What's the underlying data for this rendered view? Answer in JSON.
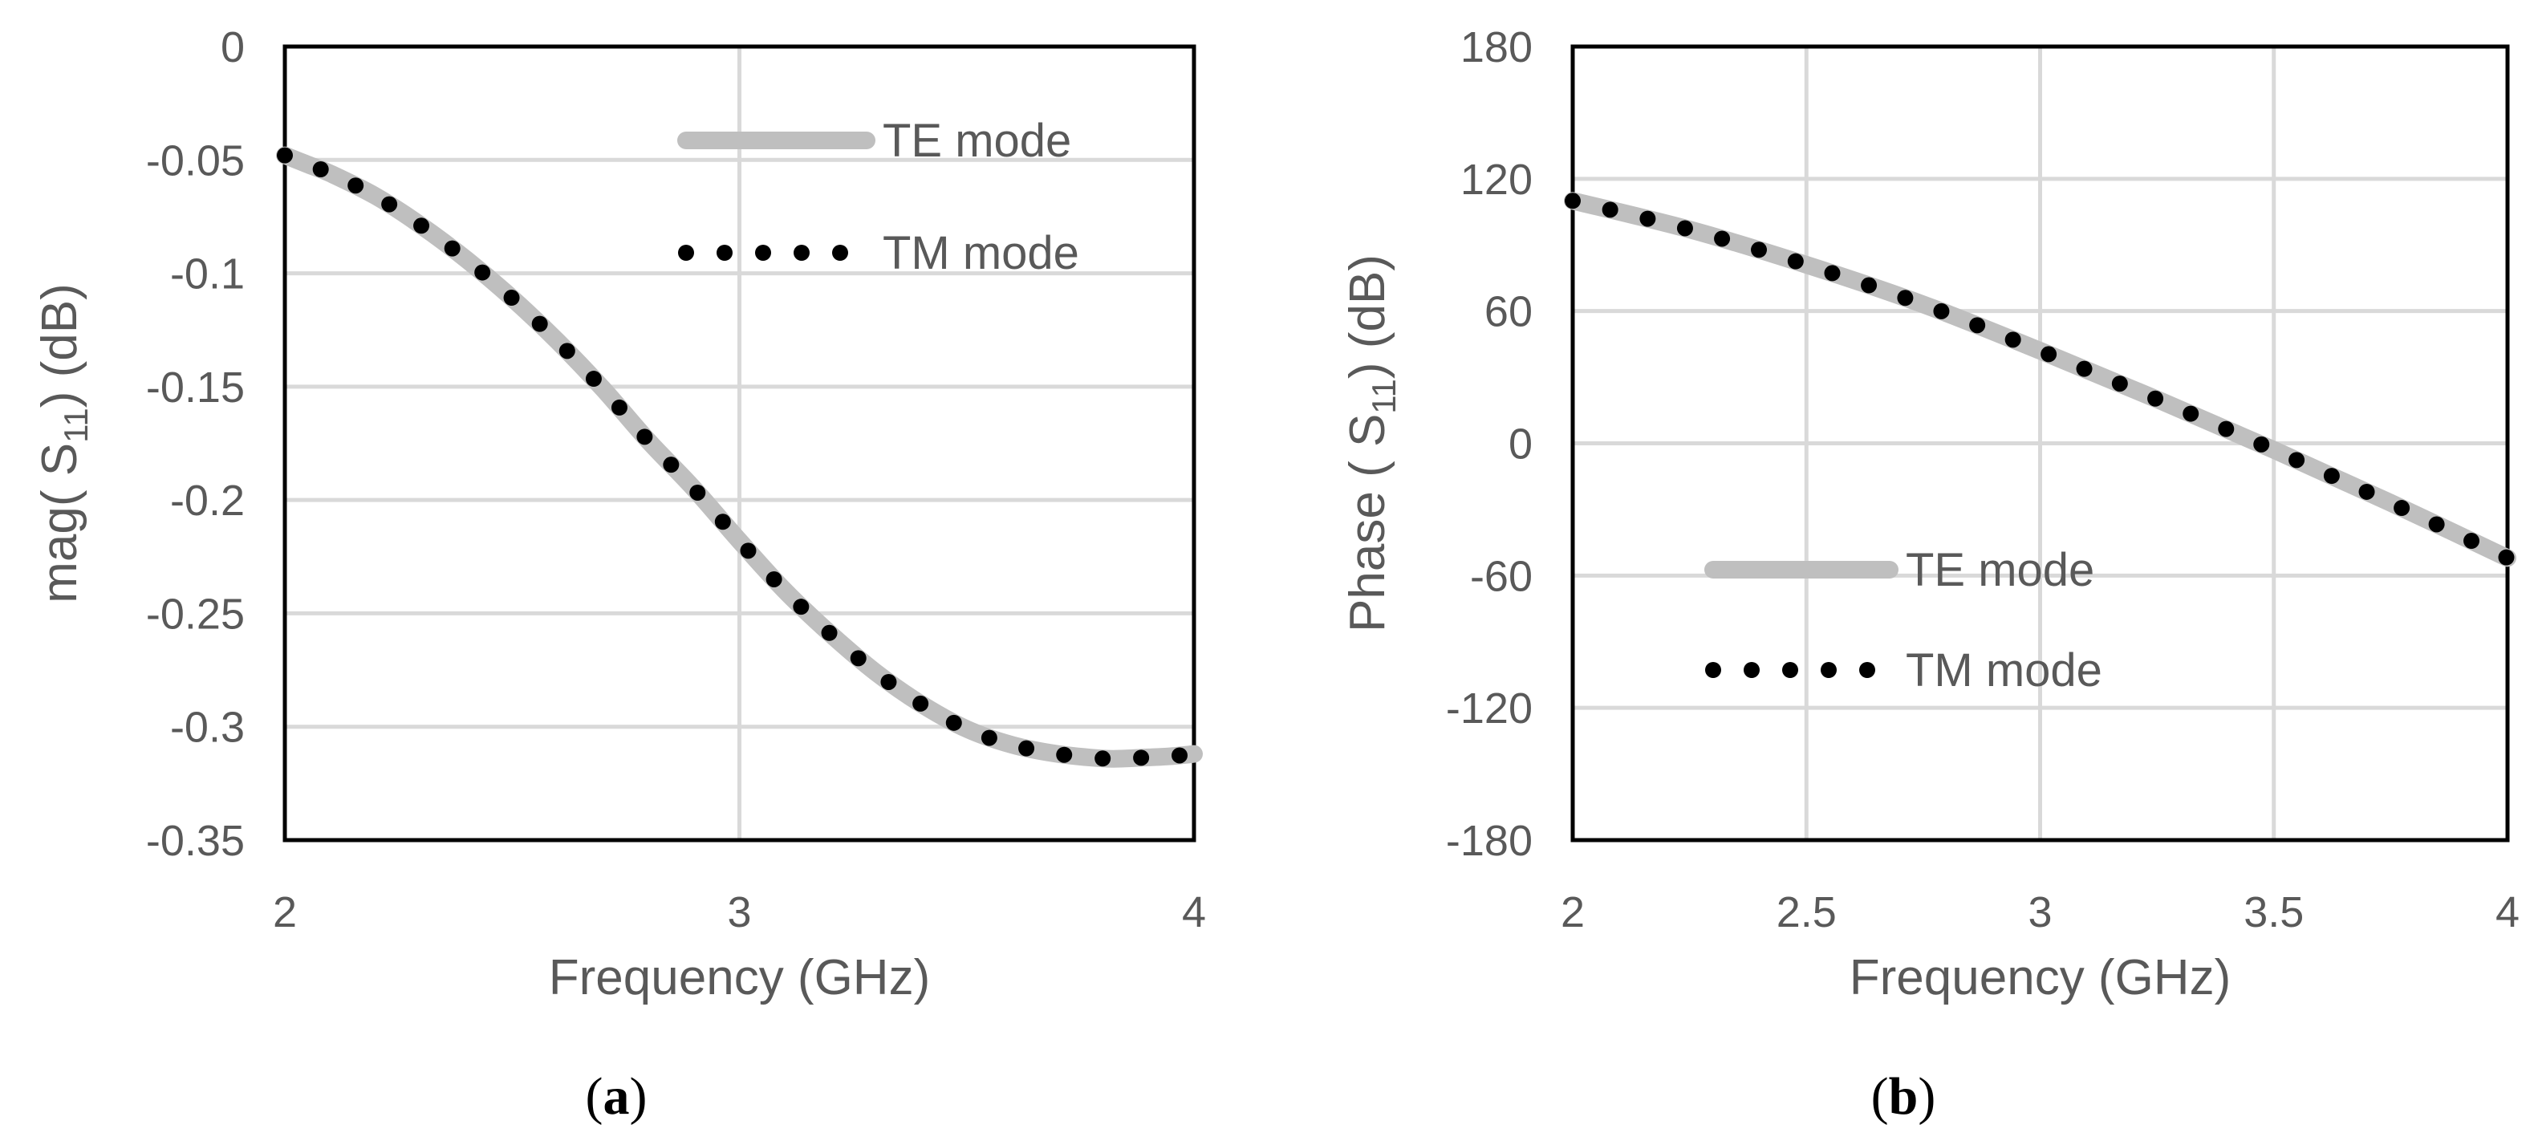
{
  "figure": {
    "styles": {
      "grid_color": "#d9d9d9",
      "frame_color": "#000000",
      "te_color": "#bfbfbf",
      "tm_color": "#000000",
      "text_color": "#595959"
    },
    "captions": [
      "(a)",
      "(b)"
    ]
  },
  "chart_data": [
    {
      "type": "line",
      "panel": "a",
      "xlabel": "Frequency (GHz)",
      "ylabel": "mag( S11) (dB)",
      "ylabel_parts": {
        "prefix": "mag( S",
        "sub": "11",
        "suffix": ") (dB)"
      },
      "xlim": [
        2,
        4
      ],
      "ylim": [
        -0.35,
        0
      ],
      "xticks": [
        2,
        3,
        4
      ],
      "xtick_labels": [
        "2",
        "3",
        "4"
      ],
      "yticks": [
        0,
        -0.05,
        -0.1,
        -0.15,
        -0.2,
        -0.25,
        -0.3,
        -0.35
      ],
      "ytick_labels": [
        "0",
        "-0.05",
        "-0.1",
        "-0.15",
        "-0.2",
        "-0.25",
        "-0.3",
        "-0.35"
      ],
      "grid": true,
      "legend_position": "top-right",
      "x": [
        2.0,
        2.05,
        2.1,
        2.2,
        2.3,
        2.4,
        2.5,
        2.6,
        2.7,
        2.8,
        2.9,
        3.0,
        3.1,
        3.2,
        3.3,
        3.4,
        3.5,
        3.6,
        3.7,
        3.8,
        3.85,
        3.9,
        3.95,
        4.0
      ],
      "series": [
        {
          "name": "TE mode",
          "style": "solid",
          "values": [
            -0.048,
            -0.052,
            -0.056,
            -0.066,
            -0.079,
            -0.094,
            -0.111,
            -0.13,
            -0.151,
            -0.174,
            -0.195,
            -0.218,
            -0.24,
            -0.259,
            -0.276,
            -0.29,
            -0.301,
            -0.308,
            -0.312,
            -0.314,
            -0.314,
            -0.3135,
            -0.313,
            -0.312
          ]
        },
        {
          "name": "TM mode",
          "style": "dotted",
          "values": [
            -0.048,
            -0.052,
            -0.056,
            -0.066,
            -0.079,
            -0.094,
            -0.111,
            -0.13,
            -0.151,
            -0.174,
            -0.195,
            -0.218,
            -0.24,
            -0.259,
            -0.276,
            -0.29,
            -0.301,
            -0.308,
            -0.312,
            -0.314,
            -0.314,
            -0.3135,
            -0.313,
            -0.312
          ]
        }
      ]
    },
    {
      "type": "line",
      "panel": "b",
      "xlabel": "Frequency (GHz)",
      "ylabel": "Phase ( S11) (dB)",
      "ylabel_parts": {
        "prefix": "Phase ( S",
        "sub": "11",
        "suffix": ") (dB)"
      },
      "xlim": [
        2,
        4
      ],
      "ylim": [
        -180,
        180
      ],
      "xticks": [
        2,
        2.5,
        3,
        3.5,
        4
      ],
      "xtick_labels": [
        "2",
        "2.5",
        "3",
        "3.5",
        "4"
      ],
      "yticks": [
        180,
        120,
        60,
        0,
        -60,
        -120,
        -180
      ],
      "ytick_labels": [
        "180",
        "120",
        "60",
        "0",
        "-60",
        "-120",
        "-180"
      ],
      "grid": true,
      "legend_position": "bottom-left",
      "x": [
        2.0,
        2.25,
        2.5,
        2.75,
        3.0,
        3.25,
        3.5,
        3.75,
        4.0
      ],
      "series": [
        {
          "name": "TE mode",
          "style": "solid",
          "values": [
            110,
            97,
            81,
            63,
            42,
            20,
            -3,
            -27,
            -52
          ]
        },
        {
          "name": "TM mode",
          "style": "dotted",
          "values": [
            110,
            97,
            81,
            63,
            42,
            20,
            -3,
            -27,
            -52
          ]
        }
      ]
    }
  ]
}
